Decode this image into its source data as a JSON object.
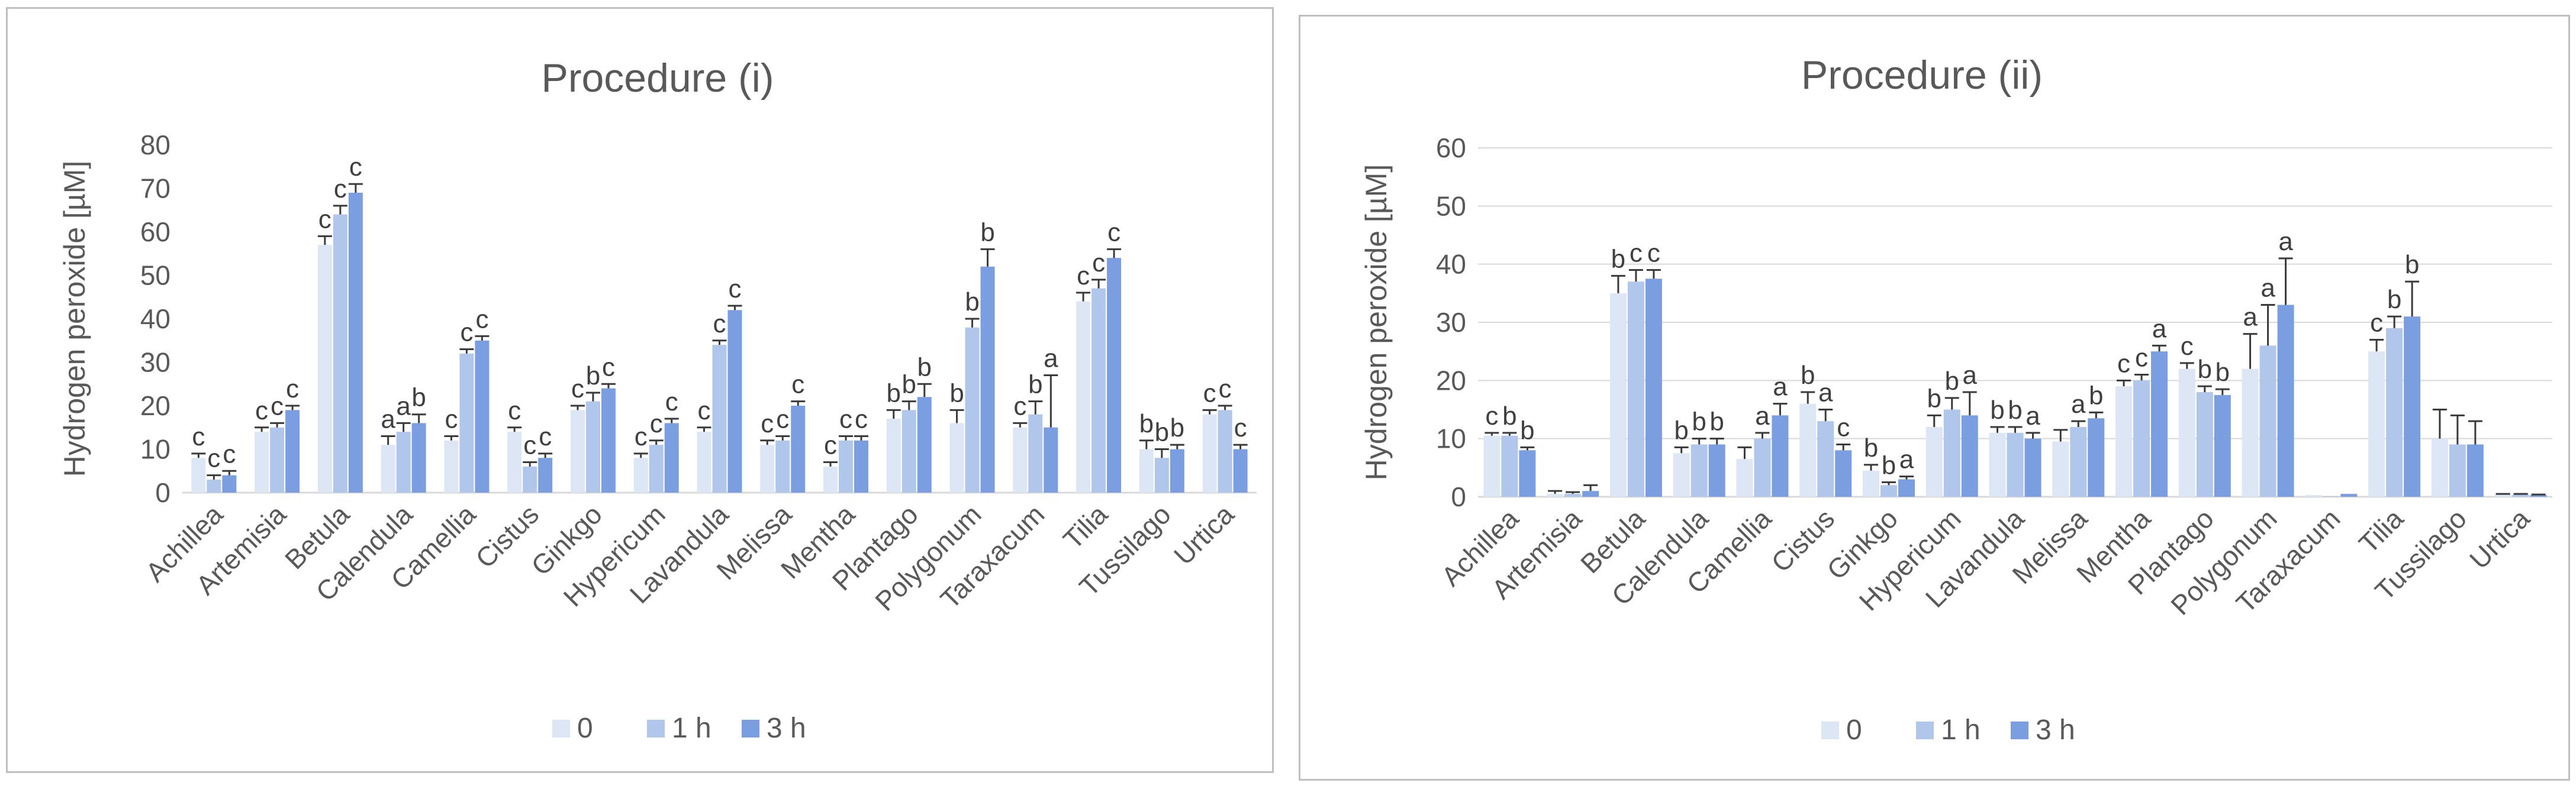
{
  "colors": {
    "s0": "#dce6f5",
    "s1": "#b0c6ea",
    "s2": "#7a9ee0",
    "axis": "#d9d9d9",
    "grid": "#d9d9d9",
    "text": "#595959",
    "error": "#3a3a3a"
  },
  "chart_data": [
    {
      "type": "bar",
      "title": "Procedure (i)",
      "ylabel": "Hydrogen peroxide [µM]",
      "ylim": [
        0,
        80
      ],
      "yticks": [
        "0",
        "10",
        "20",
        "30",
        "40",
        "50",
        "60",
        "70",
        "80"
      ],
      "grid": false,
      "legend_position": "bottom",
      "categories": [
        "Achillea",
        "Artemisia",
        "Betula",
        "Calendula",
        "Camellia",
        "Cistus",
        "Ginkgo",
        "Hypericum",
        "Lavandula",
        "Melissa",
        "Mentha",
        "Plantago",
        "Polygonum",
        "Taraxacum",
        "Tilia",
        "Tussilago",
        "Urtica"
      ],
      "series": [
        {
          "name": "0",
          "values": [
            8,
            14,
            57,
            11,
            12,
            14,
            19,
            8,
            14,
            11,
            6,
            17,
            16,
            15,
            44,
            10,
            18
          ],
          "errors": [
            1,
            1,
            2,
            2,
            1,
            1,
            1,
            1,
            1,
            1,
            1,
            2,
            3,
            1,
            2,
            2,
            1
          ]
        },
        {
          "name": "1 h",
          "values": [
            3,
            15,
            64,
            14,
            32,
            6,
            21,
            11,
            34,
            12,
            12,
            19,
            38,
            18,
            47,
            8,
            19
          ],
          "errors": [
            1,
            1,
            2,
            2,
            1,
            1,
            2,
            1,
            1,
            1,
            1,
            2,
            2,
            3,
            2,
            2,
            1
          ]
        },
        {
          "name": "3 h",
          "values": [
            4,
            19,
            69,
            16,
            35,
            8,
            24,
            16,
            42,
            20,
            12,
            22,
            52,
            15,
            54,
            10,
            10
          ],
          "errors": [
            1,
            1,
            2,
            2,
            1,
            1,
            1,
            1,
            1,
            1,
            1,
            3,
            4,
            12,
            2,
            1,
            1
          ]
        }
      ],
      "labels": [
        [
          "c",
          "c",
          "c"
        ],
        [
          "c",
          "c",
          "c"
        ],
        [
          "c",
          "c",
          "c"
        ],
        [
          "a",
          "a",
          "b"
        ],
        [
          "c",
          "c",
          "c"
        ],
        [
          "c",
          "c",
          "c"
        ],
        [
          "c",
          "b",
          "c"
        ],
        [
          "c",
          "c",
          "c"
        ],
        [
          "c",
          "c",
          "c"
        ],
        [
          "c",
          "c",
          "c"
        ],
        [
          "c",
          "c",
          "c"
        ],
        [
          "b",
          "b",
          "b"
        ],
        [
          "b",
          "b",
          "b"
        ],
        [
          "c",
          "b",
          "a"
        ],
        [
          "c",
          "c",
          "c"
        ],
        [
          "b",
          "b",
          "b"
        ],
        [
          "c",
          "c",
          "c"
        ]
      ]
    },
    {
      "type": "bar",
      "title": "Procedure (ii)",
      "ylabel": "Hydrogen peroxide [µM]",
      "ylim": [
        0,
        60
      ],
      "yticks": [
        "0",
        "10",
        "20",
        "30",
        "40",
        "50",
        "60"
      ],
      "grid": true,
      "legend_position": "bottom",
      "categories": [
        "Achillea",
        "Artemisia",
        "Betula",
        "Calendula",
        "Camellia",
        "Cistus",
        "Ginkgo",
        "Hypericum",
        "Lavandula",
        "Melissa",
        "Mentha",
        "Plantago",
        "Polygonum",
        "Taraxacum",
        "Tilia",
        "Tussilago",
        "Urtica"
      ],
      "series": [
        {
          "name": "0",
          "values": [
            10.5,
            0.5,
            35,
            7.5,
            6.5,
            16,
            4.5,
            12,
            11,
            9.5,
            19,
            22,
            22,
            0.3,
            25,
            10,
            0.4
          ],
          "errors": [
            0.5,
            0.5,
            3,
            1,
            2,
            2,
            1,
            2,
            1,
            2,
            1,
            1,
            6,
            0,
            2,
            5,
            0.1
          ]
        },
        {
          "name": "1 h",
          "values": [
            10.5,
            0.5,
            37,
            9,
            10,
            13,
            2,
            15,
            11,
            12,
            20,
            18,
            26,
            0.1,
            29,
            9,
            0.4
          ],
          "errors": [
            0.5,
            0.3,
            2,
            1,
            1,
            2,
            0.5,
            2,
            1,
            1,
            1,
            1,
            7,
            0,
            2,
            5,
            0.1
          ]
        },
        {
          "name": "3 h",
          "values": [
            8,
            1,
            37.5,
            9,
            14,
            8,
            3,
            14,
            10,
            13.5,
            25,
            17.5,
            33,
            0.5,
            31,
            9,
            0.3
          ],
          "errors": [
            0.5,
            1,
            1.5,
            1,
            2,
            1,
            0.5,
            4,
            1,
            1,
            1,
            1,
            8,
            0,
            6,
            4,
            0.1
          ]
        }
      ],
      "labels": [
        [
          "c",
          "b",
          "b"
        ],
        [
          "",
          "",
          ""
        ],
        [
          "b",
          "c",
          "c"
        ],
        [
          "b",
          "b",
          "b"
        ],
        [
          "",
          "a",
          "a"
        ],
        [
          "b",
          "a",
          "c"
        ],
        [
          "b",
          "b",
          "a"
        ],
        [
          "b",
          "b",
          "a"
        ],
        [
          "b",
          "b",
          "a"
        ],
        [
          "",
          "a",
          "b"
        ],
        [
          "c",
          "c",
          "a"
        ],
        [
          "c",
          "b",
          "b"
        ],
        [
          "a",
          "a",
          "a"
        ],
        [
          "",
          "",
          ""
        ],
        [
          "c",
          "b",
          "b"
        ],
        [
          "",
          "",
          ""
        ],
        [
          "",
          "",
          ""
        ]
      ]
    }
  ]
}
